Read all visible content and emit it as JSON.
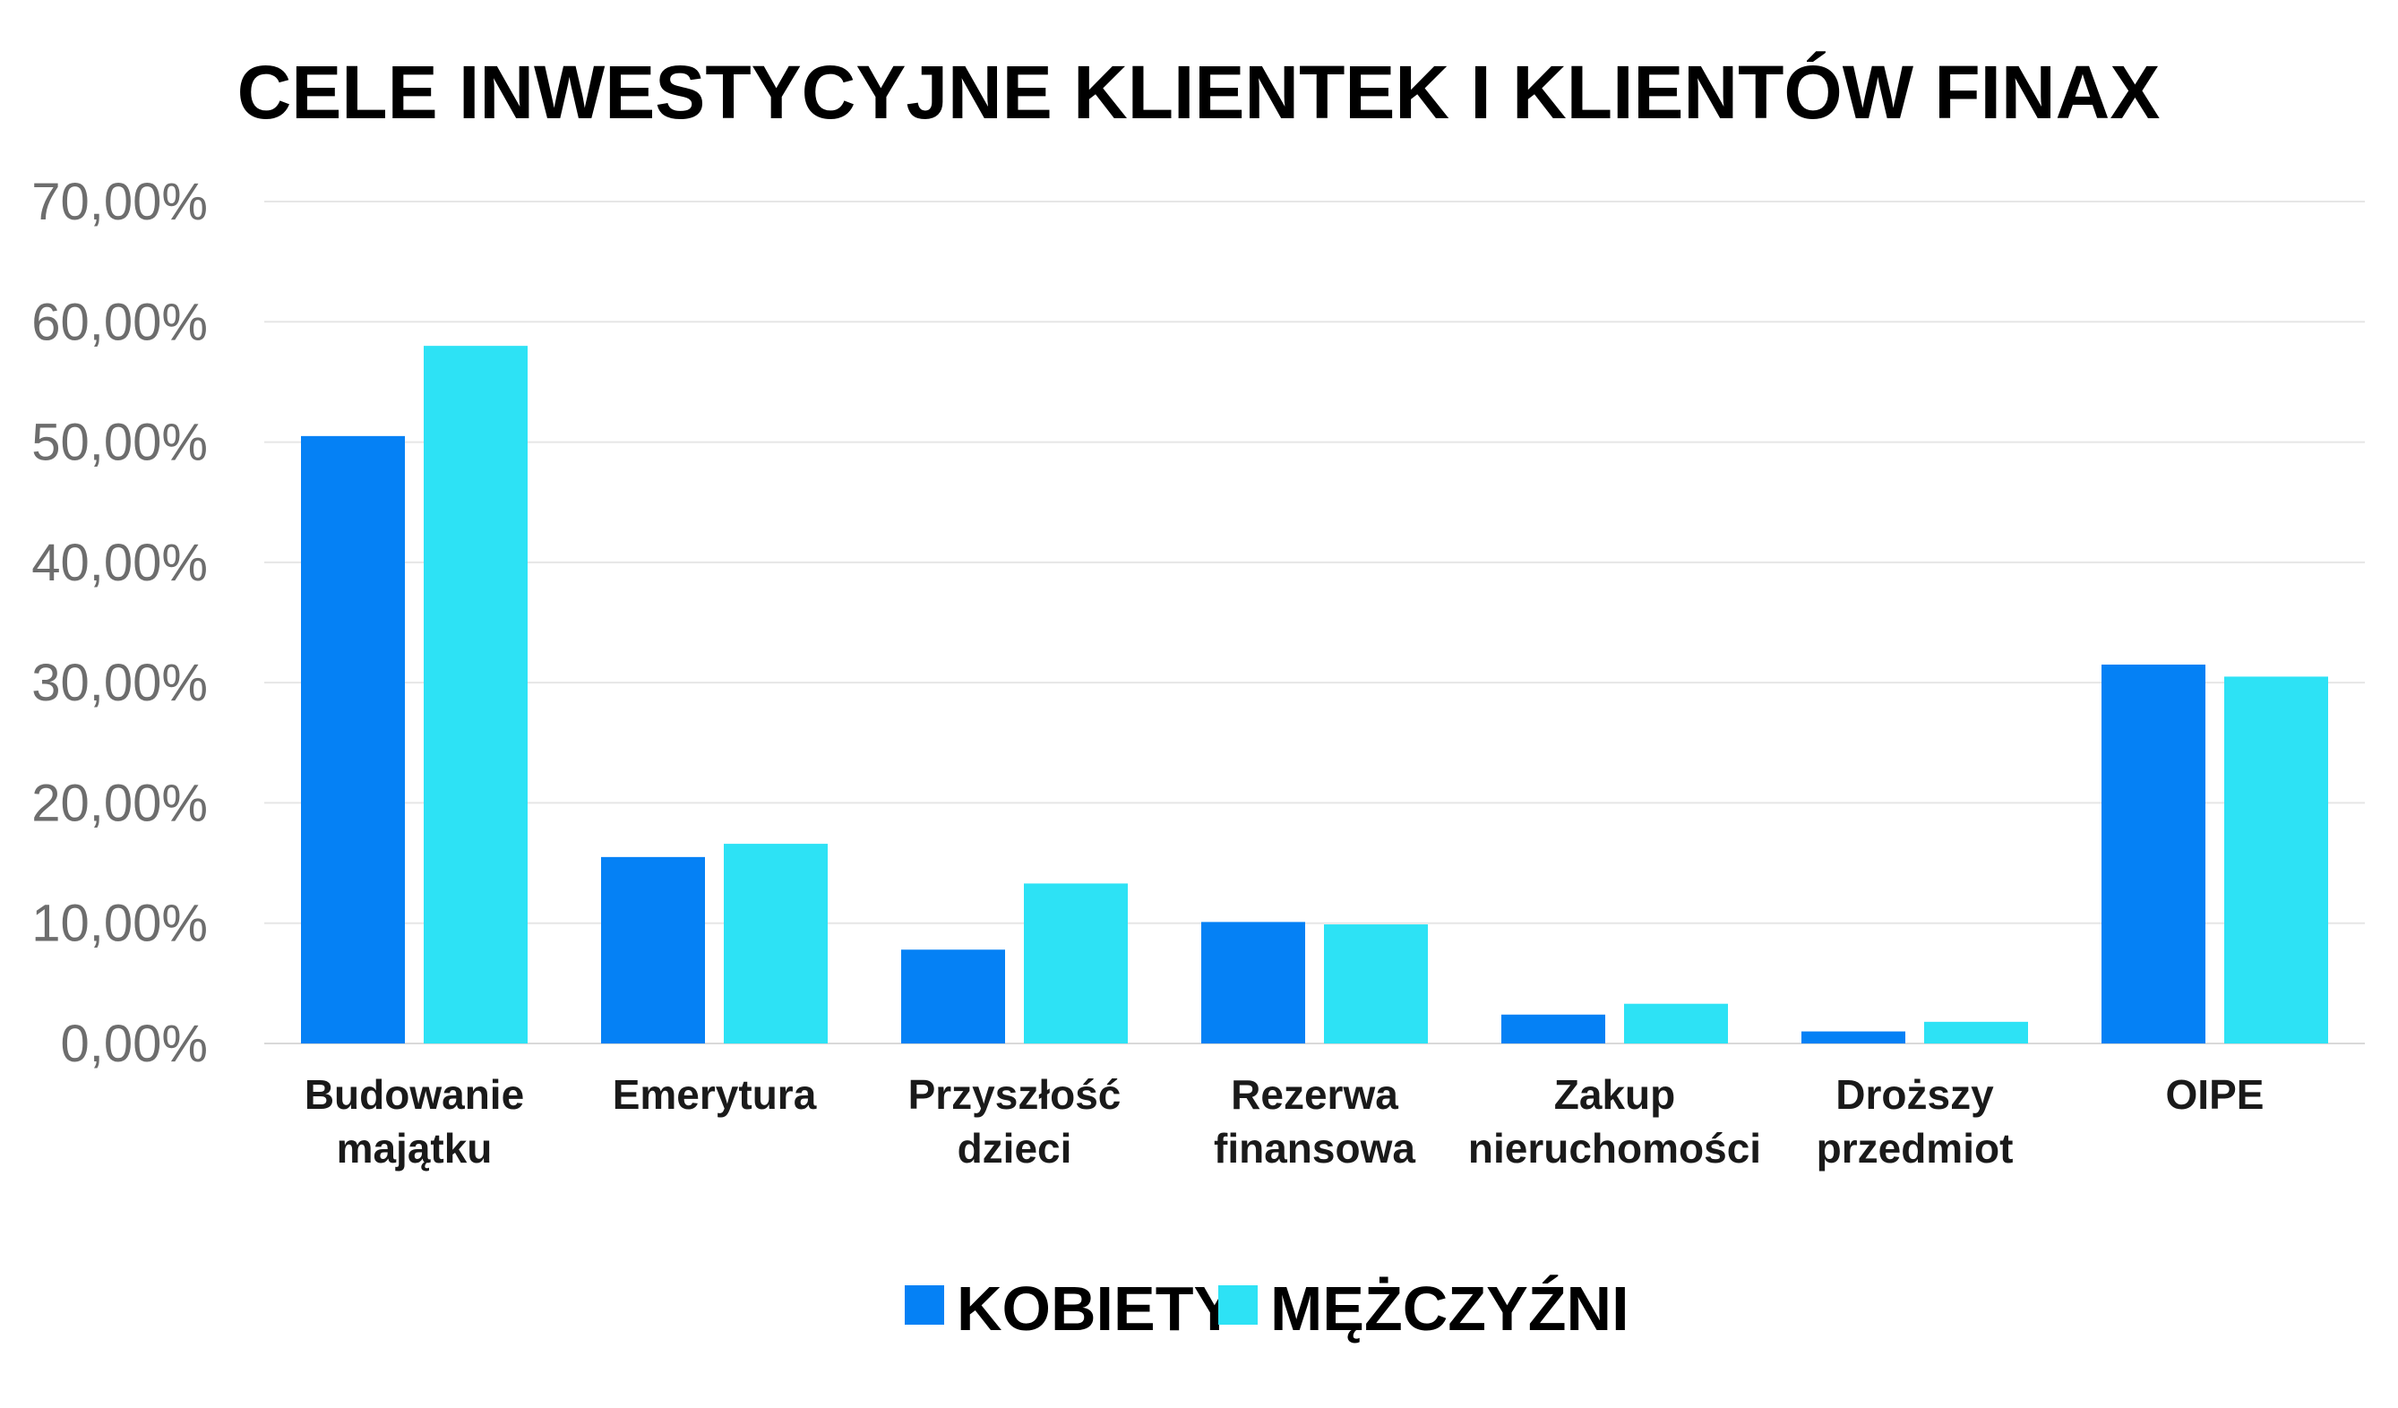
{
  "chart_data": {
    "type": "bar",
    "title": "CELE INWESTYCYJNE KLIENTEK I KLIENTÓW FINAX",
    "xlabel": "",
    "ylabel": "",
    "ylim": [
      0,
      70
    ],
    "yticks": [
      0,
      10,
      20,
      30,
      40,
      50,
      60,
      70
    ],
    "ytick_labels": [
      "0,00%",
      "10,00%",
      "20,00%",
      "30,00%",
      "40,00%",
      "50,00%",
      "60,00%",
      "70,00%"
    ],
    "categories": [
      [
        "Budowanie",
        "majątku"
      ],
      [
        "Emerytura"
      ],
      [
        "Przyszłość",
        "dzieci"
      ],
      [
        "Rezerwa",
        "finansowa"
      ],
      [
        "Zakup",
        "nieruchomości"
      ],
      [
        "Droższy",
        "przedmiot"
      ],
      [
        "OIPE"
      ]
    ],
    "series": [
      {
        "name": "KOBIETY",
        "color": "#0581f5",
        "values": [
          50.5,
          15.5,
          7.8,
          10.1,
          2.4,
          1.0,
          31.5
        ]
      },
      {
        "name": "MĘŻCZYŹNI",
        "color": "#2de2f5",
        "values": [
          58.0,
          16.6,
          13.3,
          9.9,
          3.3,
          1.8,
          30.5
        ]
      }
    ],
    "grid": true,
    "legend_position": "bottom-center"
  }
}
